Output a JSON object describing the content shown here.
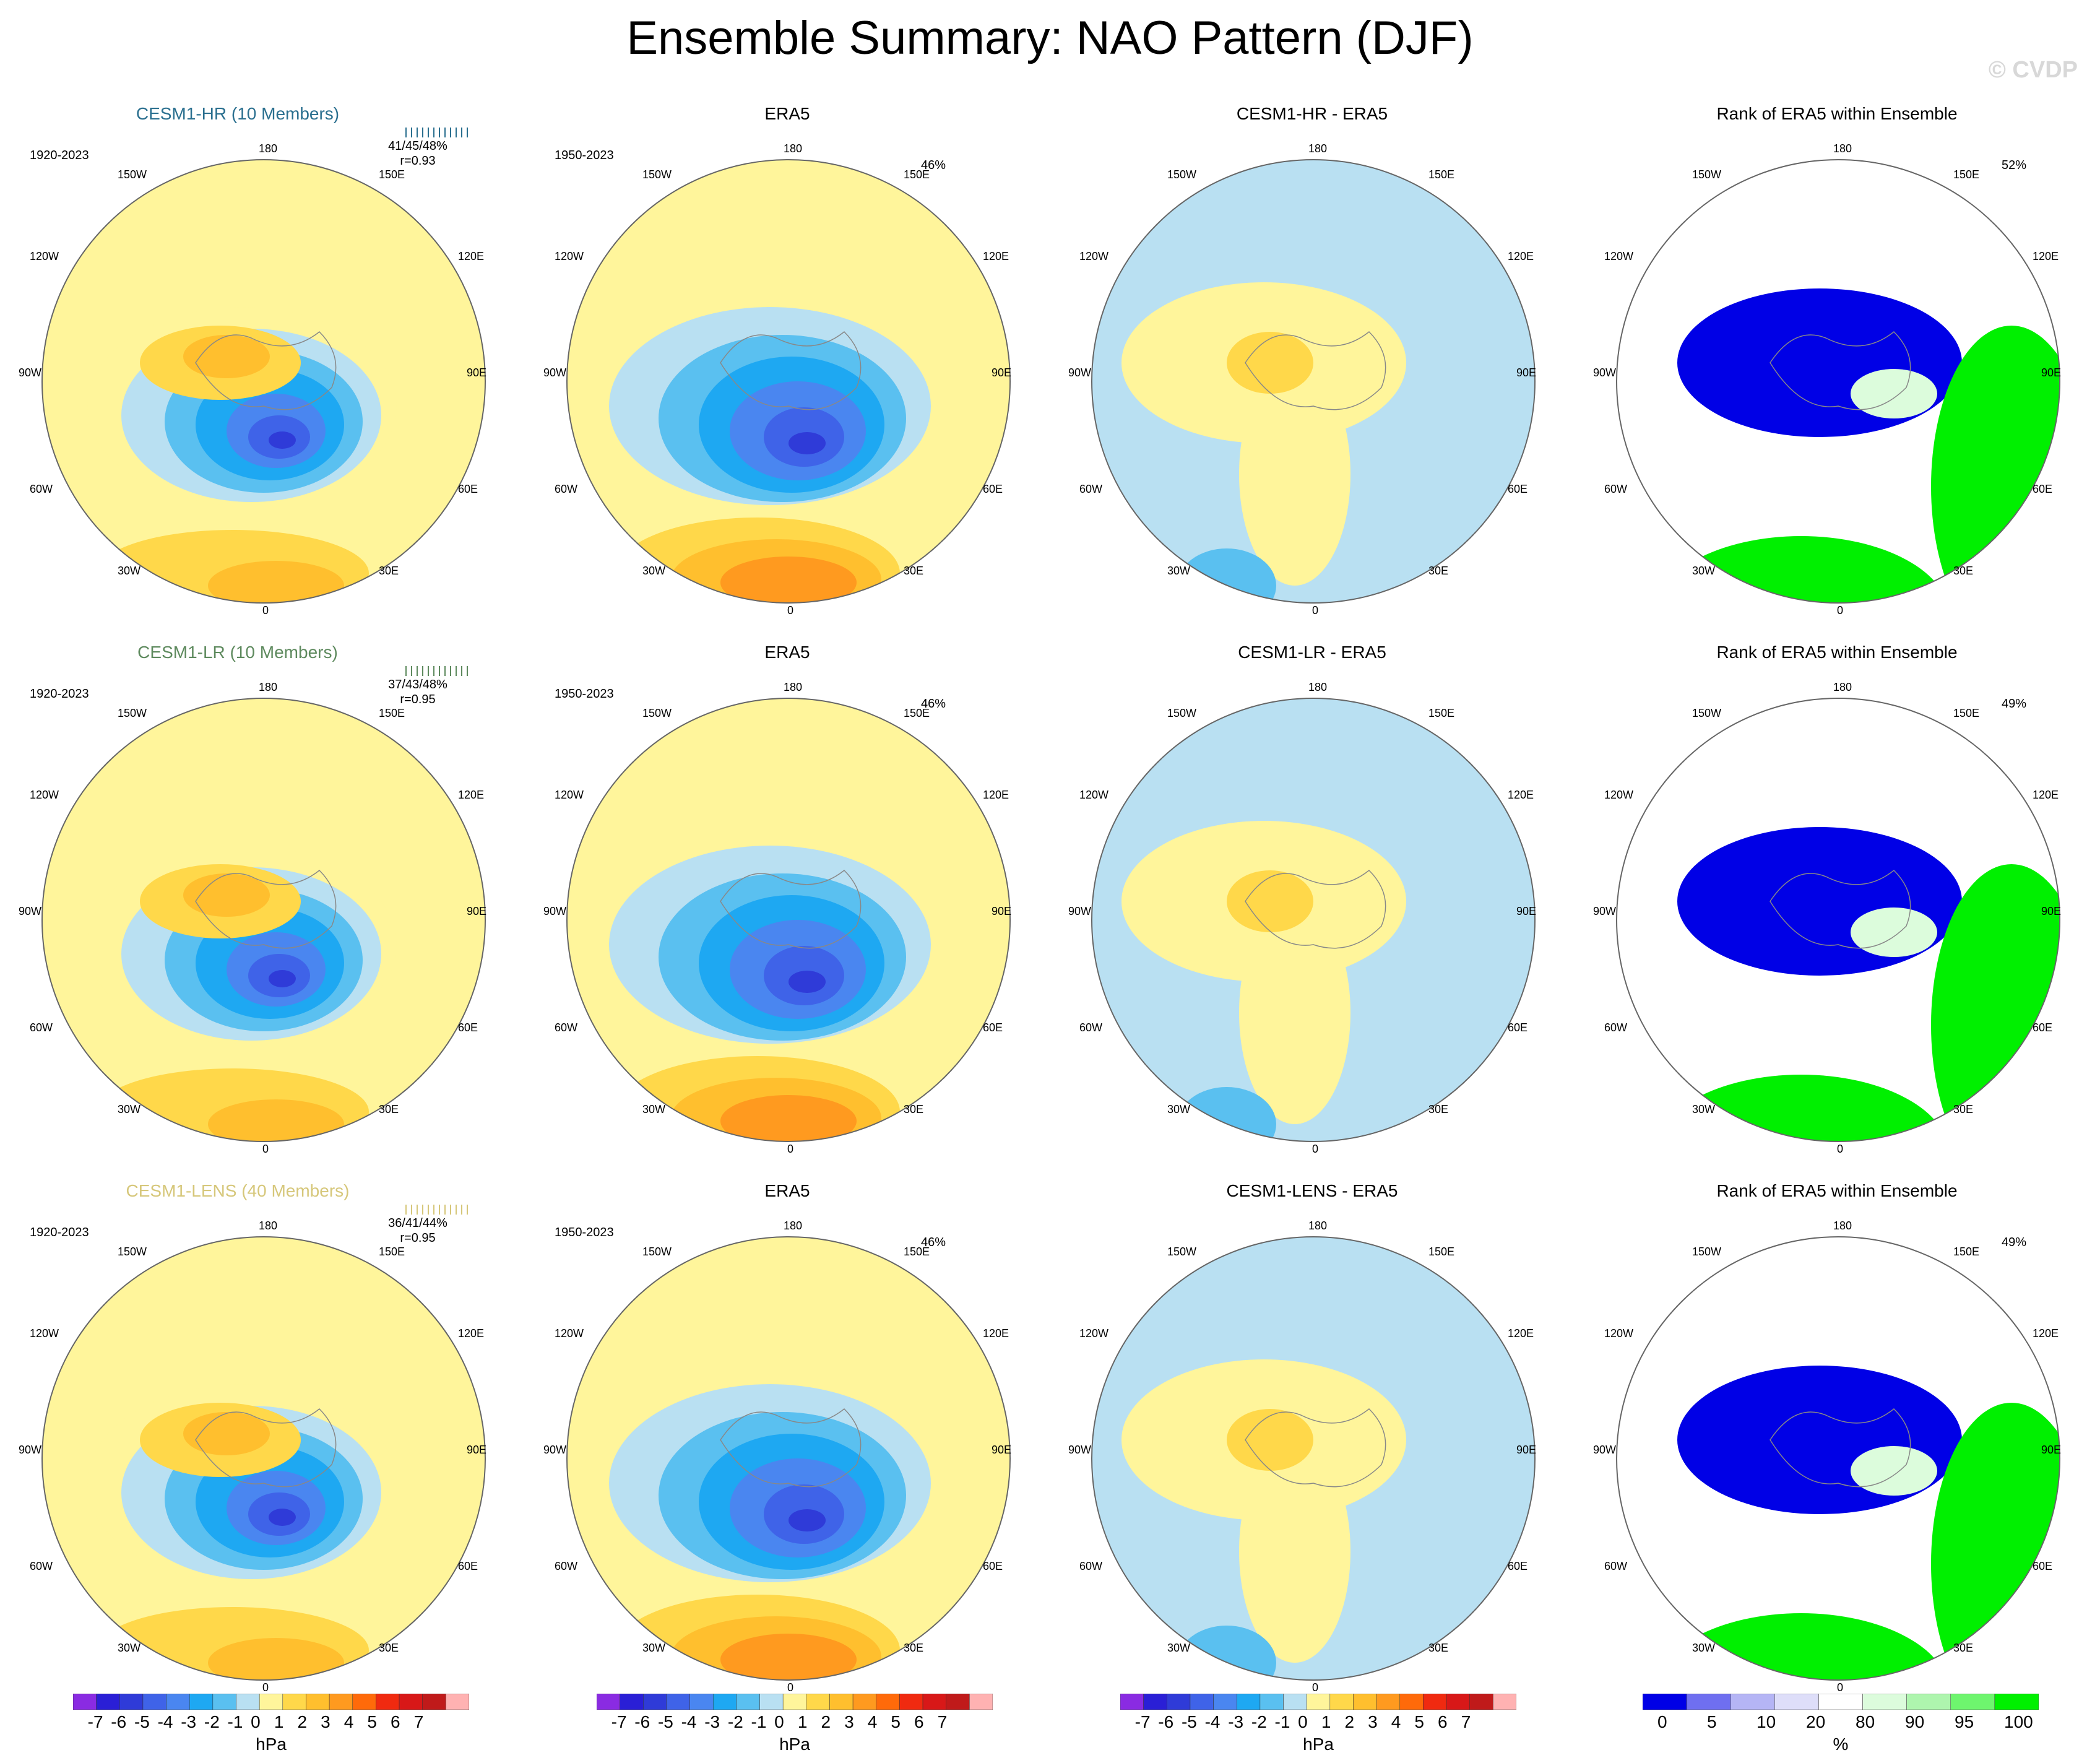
{
  "title": "Ensemble Summary: NAO Pattern (DJF)",
  "credit": "© CVDP",
  "colors": {
    "hr": "#2a6f8f",
    "lr": "#5e8a5e",
    "lens": "#d6c77a",
    "pos1": "#fff59b",
    "neg1": "#b9e0f2",
    "blue_rank": "#0000e6",
    "green_rank": "#00f000"
  },
  "rows": [
    {
      "model": {
        "title": "CESM1-HR (10 Members)",
        "period": "1920-2023",
        "stats1": "41/45/48%",
        "stats2": "r=0.93"
      },
      "obs": {
        "title": "ERA5",
        "period": "1950-2023",
        "pct": "46%"
      },
      "diff": {
        "title": "CESM1-HR - ERA5"
      },
      "rank": {
        "title": "Rank of ERA5 within Ensemble",
        "pct": "52%"
      }
    },
    {
      "model": {
        "title": "CESM1-LR (10 Members)",
        "period": "1920-2023",
        "stats1": "37/43/48%",
        "stats2": "r=0.95"
      },
      "obs": {
        "title": "ERA5",
        "period": "1950-2023",
        "pct": "46%"
      },
      "diff": {
        "title": "CESM1-LR - ERA5"
      },
      "rank": {
        "title": "Rank of ERA5 within Ensemble",
        "pct": "49%"
      }
    },
    {
      "model": {
        "title": "CESM1-LENS (40 Members)",
        "period": "1920-2023",
        "stats1": "36/41/44%",
        "stats2": "r=0.95"
      },
      "obs": {
        "title": "ERA5",
        "period": "1950-2023",
        "pct": "46%"
      },
      "diff": {
        "title": "CESM1-LENS - ERA5"
      },
      "rank": {
        "title": "Rank of ERA5 within Ensemble",
        "pct": "49%"
      }
    }
  ],
  "lon_labels": {
    "top": "180",
    "bottom": "0",
    "ul": "150W",
    "ur": "150E",
    "l1": "120W",
    "r1": "120E",
    "l2": "90W",
    "r2": "90E",
    "l3": "60W",
    "r3": "60E",
    "bl": "30W",
    "br": "30E"
  },
  "hpa_colorbar": {
    "unit": "hPa",
    "ticks": [
      "-7",
      "-6",
      "-5",
      "-4",
      "-3",
      "-2",
      "-1",
      "0",
      "1",
      "2",
      "3",
      "4",
      "5",
      "6",
      "7"
    ],
    "colors": [
      "#8a2be2",
      "#2a1fd6",
      "#2f3bd8",
      "#3f63e8",
      "#4a86f0",
      "#1ea8f2",
      "#5ac0f0",
      "#b9e0f2",
      "#fff59b",
      "#ffd84a",
      "#ffbf2e",
      "#ff9a1f",
      "#ff6a0a",
      "#f02a10",
      "#d81818",
      "#c01a1a",
      "#ffb2b2"
    ]
  },
  "rank_colorbar": {
    "unit": "%",
    "ticks": [
      "0",
      "5",
      "10",
      "20",
      "80",
      "90",
      "95",
      "100"
    ],
    "colors": [
      "#0000e6",
      "#6f6ff0",
      "#b5b5f5",
      "#dedef9",
      "#ffffff",
      "#dcfcdc",
      "#aef5ae",
      "#6ef56e",
      "#00f000"
    ]
  }
}
